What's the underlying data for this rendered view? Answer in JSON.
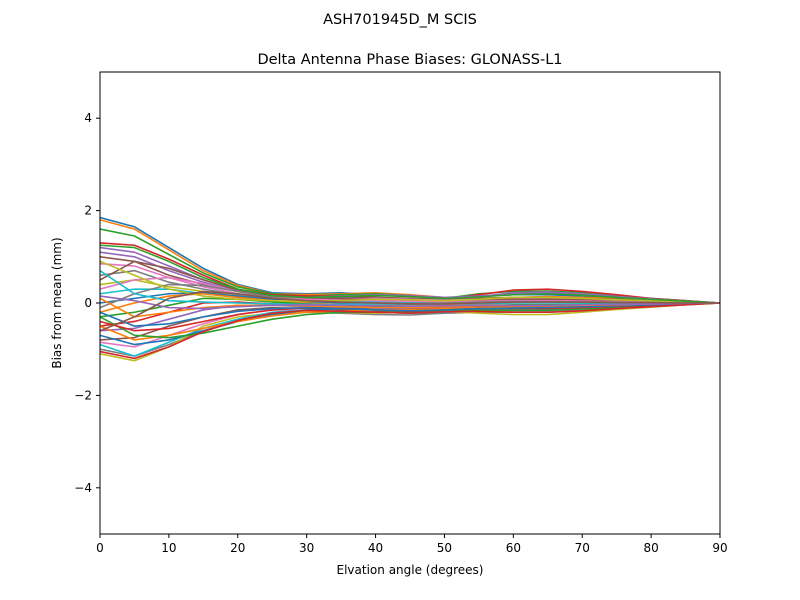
{
  "chart_data": {
    "type": "line",
    "suptitle": "ASH701945D_M    SCIS",
    "title": "Delta Antenna Phase Biases: GLONASS-L1",
    "xlabel": "Elvation angle (degrees)",
    "ylabel": "Bias from mean (mm)",
    "xlim": [
      0,
      90
    ],
    "ylim": [
      -5,
      5
    ],
    "xticks": [
      0,
      10,
      20,
      30,
      40,
      50,
      60,
      70,
      80,
      90
    ],
    "yticks": [
      -4,
      -2,
      0,
      2,
      4
    ],
    "ytick_labels": [
      "−4",
      "−2",
      "0",
      "2",
      "4"
    ],
    "grid": false,
    "legend": "none",
    "x": [
      0,
      5,
      10,
      15,
      20,
      25,
      30,
      35,
      40,
      45,
      50,
      55,
      60,
      65,
      70,
      75,
      80,
      85,
      90
    ],
    "color_cycle": [
      "#1f77b4",
      "#ff7f0e",
      "#2ca02c",
      "#d62728",
      "#9467bd",
      "#8c564b",
      "#e377c2",
      "#7f7f7f",
      "#bcbd22",
      "#17becf"
    ],
    "series": [
      {
        "values": [
          1.85,
          1.65,
          1.2,
          0.75,
          0.4,
          0.22,
          0.2,
          0.22,
          0.18,
          0.15,
          0.1,
          0.15,
          0.18,
          0.18,
          0.15,
          0.12,
          0.08,
          0.04,
          0.0
        ]
      },
      {
        "values": [
          1.8,
          1.6,
          1.15,
          0.7,
          0.38,
          0.2,
          0.18,
          0.2,
          0.22,
          0.18,
          0.12,
          0.1,
          0.12,
          0.14,
          0.12,
          0.1,
          0.07,
          0.03,
          0.0
        ]
      },
      {
        "values": [
          1.6,
          1.45,
          1.05,
          0.65,
          0.35,
          0.2,
          0.15,
          0.18,
          0.2,
          0.16,
          0.1,
          0.2,
          0.25,
          0.26,
          0.22,
          0.15,
          0.1,
          0.05,
          0.0
        ]
      },
      {
        "values": [
          1.3,
          1.25,
          0.95,
          0.6,
          0.3,
          0.18,
          0.15,
          0.15,
          0.12,
          0.1,
          0.08,
          0.18,
          0.28,
          0.3,
          0.25,
          0.18,
          0.1,
          0.05,
          0.0
        ]
      },
      {
        "values": [
          1.2,
          1.1,
          0.8,
          0.5,
          0.28,
          0.15,
          0.12,
          0.12,
          0.1,
          0.08,
          0.06,
          0.14,
          0.22,
          0.24,
          0.2,
          0.14,
          0.08,
          0.04,
          0.0
        ]
      },
      {
        "values": [
          1.0,
          0.9,
          0.6,
          0.4,
          0.25,
          0.12,
          0.1,
          0.1,
          0.12,
          0.1,
          0.08,
          0.1,
          0.12,
          0.12,
          0.1,
          0.08,
          0.06,
          0.03,
          0.0
        ]
      },
      {
        "values": [
          0.85,
          0.8,
          0.55,
          0.35,
          0.2,
          0.12,
          0.08,
          0.08,
          0.1,
          0.08,
          0.06,
          0.08,
          0.1,
          0.1,
          0.08,
          0.06,
          0.04,
          0.02,
          0.0
        ]
      },
      {
        "values": [
          0.6,
          0.7,
          0.45,
          0.3,
          0.18,
          0.1,
          0.06,
          0.06,
          0.08,
          0.06,
          0.05,
          0.06,
          0.08,
          0.08,
          0.06,
          0.05,
          0.03,
          0.02,
          0.0
        ]
      },
      {
        "values": [
          0.4,
          0.5,
          0.35,
          0.25,
          0.15,
          0.08,
          0.05,
          0.05,
          0.06,
          0.05,
          0.04,
          0.05,
          0.06,
          0.06,
          0.05,
          0.04,
          0.03,
          0.01,
          0.0
        ]
      },
      {
        "values": [
          0.2,
          0.3,
          0.3,
          0.2,
          0.12,
          0.05,
          0.02,
          0.02,
          0.03,
          0.02,
          0.01,
          0.02,
          0.03,
          0.03,
          0.02,
          0.02,
          0.01,
          0.0,
          0.0
        ]
      },
      {
        "values": [
          0.0,
          0.1,
          0.2,
          0.22,
          0.15,
          0.08,
          0.03,
          0.0,
          -0.02,
          -0.03,
          -0.02,
          0.0,
          0.02,
          0.02,
          0.01,
          0.01,
          0.0,
          0.0,
          0.0
        ]
      },
      {
        "values": [
          -0.2,
          0.0,
          0.15,
          0.2,
          0.12,
          0.05,
          0.0,
          -0.03,
          -0.05,
          -0.05,
          -0.04,
          -0.02,
          0.0,
          0.0,
          0.0,
          0.0,
          0.0,
          0.0,
          0.0
        ]
      },
      {
        "values": [
          -0.3,
          -0.2,
          -0.05,
          0.1,
          0.08,
          0.02,
          -0.02,
          -0.05,
          -0.08,
          -0.1,
          -0.08,
          -0.05,
          -0.04,
          -0.04,
          -0.03,
          -0.02,
          -0.01,
          0.0,
          0.0
        ]
      },
      {
        "values": [
          -0.5,
          -0.4,
          -0.2,
          0.0,
          0.02,
          -0.02,
          -0.05,
          -0.08,
          -0.1,
          -0.12,
          -0.1,
          -0.08,
          -0.08,
          -0.08,
          -0.06,
          -0.04,
          -0.03,
          -0.01,
          0.0
        ]
      },
      {
        "values": [
          -0.6,
          -0.55,
          -0.35,
          -0.15,
          -0.05,
          -0.05,
          -0.08,
          -0.1,
          -0.12,
          -0.14,
          -0.12,
          -0.1,
          -0.1,
          -0.1,
          -0.08,
          -0.06,
          -0.04,
          -0.02,
          0.0
        ]
      },
      {
        "values": [
          -0.8,
          -0.75,
          -0.5,
          -0.3,
          -0.15,
          -0.1,
          -0.12,
          -0.15,
          -0.18,
          -0.2,
          -0.17,
          -0.14,
          -0.14,
          -0.14,
          -0.12,
          -0.09,
          -0.06,
          -0.03,
          0.0
        ]
      },
      {
        "values": [
          -0.85,
          -0.95,
          -0.7,
          -0.45,
          -0.25,
          -0.15,
          -0.15,
          -0.18,
          -0.2,
          -0.22,
          -0.2,
          -0.17,
          -0.18,
          -0.18,
          -0.15,
          -0.1,
          -0.07,
          -0.03,
          0.0
        ]
      },
      {
        "values": [
          -1.0,
          -1.15,
          -0.9,
          -0.6,
          -0.4,
          -0.25,
          -0.2,
          -0.22,
          -0.25,
          -0.26,
          -0.22,
          -0.2,
          -0.2,
          -0.2,
          -0.17,
          -0.12,
          -0.08,
          -0.04,
          0.0
        ]
      },
      {
        "values": [
          -1.1,
          -1.25,
          -0.95,
          -0.5,
          -0.3,
          -0.22,
          -0.18,
          -0.2,
          -0.22,
          -0.2,
          -0.18,
          -0.22,
          -0.25,
          -0.25,
          -0.2,
          -0.14,
          -0.09,
          -0.04,
          0.0
        ]
      },
      {
        "values": [
          -0.9,
          -1.15,
          -0.85,
          -0.55,
          -0.35,
          -0.2,
          -0.15,
          -0.18,
          -0.2,
          -0.22,
          -0.2,
          -0.16,
          -0.15,
          -0.15,
          -0.12,
          -0.09,
          -0.06,
          -0.03,
          0.0
        ]
      },
      {
        "values": [
          -0.7,
          -0.9,
          -0.8,
          -0.6,
          -0.4,
          -0.25,
          -0.15,
          -0.12,
          -0.1,
          -0.1,
          -0.08,
          -0.06,
          -0.06,
          -0.06,
          -0.05,
          -0.04,
          -0.02,
          -0.01,
          0.0
        ]
      },
      {
        "values": [
          -0.5,
          -0.8,
          -0.7,
          -0.55,
          -0.4,
          -0.28,
          -0.2,
          -0.18,
          -0.15,
          -0.15,
          -0.12,
          -0.1,
          -0.1,
          -0.1,
          -0.08,
          -0.06,
          -0.04,
          -0.02,
          0.0
        ]
      },
      {
        "values": [
          -0.3,
          -0.7,
          -0.75,
          -0.65,
          -0.5,
          -0.35,
          -0.25,
          -0.2,
          -0.2,
          -0.2,
          -0.18,
          -0.16,
          -0.16,
          -0.16,
          -0.13,
          -0.1,
          -0.06,
          -0.03,
          0.0
        ]
      },
      {
        "values": [
          -0.4,
          -0.6,
          -0.55,
          -0.4,
          -0.25,
          -0.15,
          -0.1,
          -0.12,
          -0.15,
          -0.18,
          -0.15,
          -0.12,
          -0.12,
          -0.12,
          -0.1,
          -0.07,
          -0.05,
          -0.02,
          0.0
        ]
      },
      {
        "values": [
          1.1,
          1.0,
          0.7,
          0.45,
          0.25,
          0.15,
          0.12,
          0.15,
          0.18,
          0.16,
          0.12,
          0.15,
          0.2,
          0.22,
          0.2,
          0.14,
          0.09,
          0.04,
          0.0
        ]
      },
      {
        "values": [
          0.5,
          0.9,
          0.75,
          0.5,
          0.28,
          0.15,
          0.1,
          0.08,
          0.08,
          0.06,
          0.04,
          0.06,
          0.08,
          0.08,
          0.07,
          0.05,
          0.03,
          0.01,
          0.0
        ]
      },
      {
        "values": [
          0.3,
          0.5,
          0.55,
          0.42,
          0.25,
          0.12,
          0.08,
          0.06,
          0.05,
          0.04,
          0.03,
          0.04,
          0.05,
          0.05,
          0.04,
          0.03,
          0.02,
          0.01,
          0.0
        ]
      },
      {
        "values": [
          -0.1,
          0.2,
          0.4,
          0.38,
          0.25,
          0.12,
          0.05,
          0.02,
          0.0,
          -0.01,
          0.0,
          0.02,
          0.03,
          0.03,
          0.02,
          0.02,
          0.01,
          0.0,
          0.0
        ]
      },
      {
        "values": [
          0.9,
          0.6,
          0.3,
          0.15,
          0.08,
          0.05,
          0.04,
          0.05,
          0.08,
          0.07,
          0.05,
          0.08,
          0.12,
          0.12,
          0.1,
          0.07,
          0.05,
          0.02,
          0.0
        ]
      },
      {
        "values": [
          0.7,
          0.2,
          0.05,
          0.02,
          0.0,
          -0.02,
          -0.03,
          -0.03,
          -0.02,
          -0.03,
          -0.02,
          -0.01,
          0.0,
          0.0,
          0.0,
          0.0,
          0.0,
          0.0,
          0.0
        ]
      },
      {
        "values": [
          -0.2,
          -0.5,
          -0.45,
          -0.3,
          -0.18,
          -0.12,
          -0.1,
          -0.12,
          -0.15,
          -0.17,
          -0.15,
          -0.12,
          -0.11,
          -0.1,
          -0.08,
          -0.06,
          -0.04,
          -0.02,
          0.0
        ]
      },
      {
        "values": [
          0.1,
          -0.3,
          -0.2,
          -0.1,
          -0.05,
          -0.05,
          -0.06,
          -0.08,
          -0.1,
          -0.1,
          -0.08,
          -0.06,
          -0.06,
          -0.06,
          -0.05,
          -0.04,
          -0.02,
          -0.01,
          0.0
        ]
      },
      {
        "values": [
          1.25,
          1.2,
          0.9,
          0.55,
          0.3,
          0.16,
          0.12,
          0.14,
          0.16,
          0.14,
          0.1,
          0.13,
          0.18,
          0.2,
          0.17,
          0.12,
          0.08,
          0.04,
          0.0
        ]
      },
      {
        "values": [
          -1.05,
          -1.2,
          -0.95,
          -0.62,
          -0.38,
          -0.22,
          -0.16,
          -0.18,
          -0.2,
          -0.22,
          -0.19,
          -0.18,
          -0.2,
          -0.2,
          -0.17,
          -0.12,
          -0.08,
          -0.04,
          0.0
        ]
      },
      {
        "values": [
          0.15,
          0.05,
          -0.1,
          -0.12,
          -0.08,
          -0.05,
          -0.04,
          -0.05,
          -0.06,
          -0.07,
          -0.06,
          -0.05,
          -0.05,
          -0.05,
          -0.04,
          -0.03,
          -0.02,
          -0.01,
          0.0
        ]
      },
      {
        "values": [
          -0.6,
          -0.3,
          0.1,
          0.25,
          0.2,
          0.1,
          0.05,
          0.02,
          0.0,
          -0.02,
          -0.02,
          0.0,
          0.02,
          0.02,
          0.02,
          0.01,
          0.01,
          0.0,
          0.0
        ]
      }
    ]
  }
}
